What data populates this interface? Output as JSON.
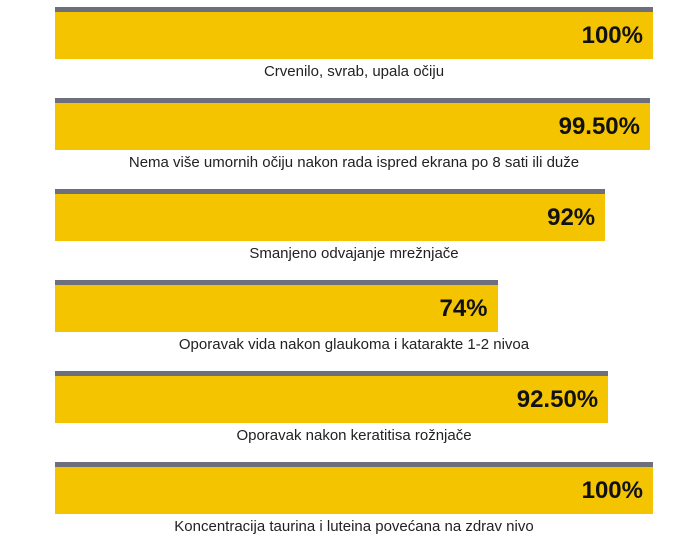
{
  "colors": {
    "bar_fill": "#f4c400",
    "bar_top": "#6e6f7d",
    "text": "#222222"
  },
  "chart_data": {
    "type": "bar",
    "orientation": "horizontal",
    "xlim": [
      0,
      100
    ],
    "categories": [
      "Crvenilo, svrab, upala očiju",
      "Nema više umornih očiju nakon rada ispred ekrana po 8 sati ili duže",
      "Smanjeno odvajanje mrežnjače",
      "Oporavak vida nakon glaukoma i katarakte 1-2 nivoa",
      "Oporavak nakon keratitisa rožnjače",
      "Koncentracija taurina i luteina povećana na zdrav nivo"
    ],
    "values": [
      100,
      99.5,
      92,
      74,
      92.5,
      100
    ],
    "value_labels": [
      "100%",
      "99.50%",
      "92%",
      "74%",
      "92.50%",
      "100%"
    ]
  }
}
